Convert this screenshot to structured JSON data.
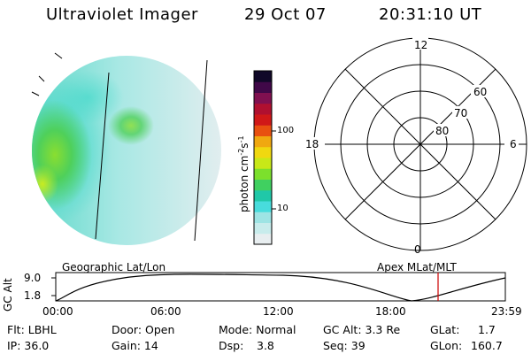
{
  "header": {
    "instrument": "Ultraviolet Imager",
    "date": "29 Oct 07",
    "time": "20:31:10 UT"
  },
  "colorbar": {
    "unit_label": "photon cm",
    "unit_sup1": "-2",
    "unit_s": "s",
    "unit_sup2": "-1",
    "ticks": [
      "100",
      "10"
    ],
    "colors": [
      "#e8eef0",
      "#c8ecec",
      "#9ee4e4",
      "#48dcdc",
      "#20c8a8",
      "#40d060",
      "#7ce02c",
      "#c8e818",
      "#f0d810",
      "#f0a810",
      "#e85010",
      "#d01818",
      "#b01030",
      "#801050",
      "#400848",
      "#100828"
    ]
  },
  "polar_plot": {
    "top_label": "12",
    "bottom_label": "0",
    "left_label": "18",
    "right_label": "6",
    "lat_labels": [
      "60",
      "70",
      "80"
    ]
  },
  "timeline": {
    "left_title": "Geographic Lat/Lon",
    "right_title": "Apex MLat/MLT",
    "y_label": "GC Alt",
    "y_ticks": [
      "9.0",
      "1.8"
    ],
    "x_ticks": [
      "00:00",
      "06:00",
      "12:00",
      "18:00",
      "23:59"
    ],
    "marker_color": "#cc0000"
  },
  "info": {
    "flt": "Flt: LBHL",
    "ip": "IP: 36.0",
    "door": "Door: Open",
    "gain": "Gain: 14",
    "mode": "Mode: Normal",
    "dsp_label": "Dsp:",
    "dsp_value": "3.8",
    "gc_alt": "GC Alt: 3.3 Re",
    "seq": "Seq: 39",
    "glat_label": "GLat:",
    "glat_value": "1.7",
    "glon_label": "GLon:",
    "glon_value": "160.7"
  }
}
